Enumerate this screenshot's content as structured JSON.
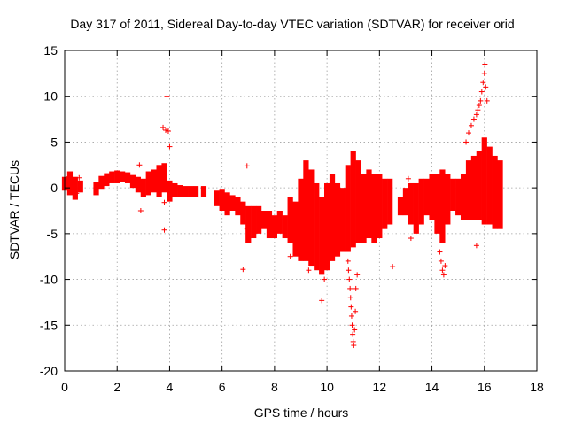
{
  "chart_data": {
    "type": "scatter",
    "title": "Day 317 of 2011, Sidereal Day-to-day VTEC variation (SDTVAR) for receiver orid",
    "xlabel": "GPS time / hours",
    "ylabel": "SDTVAR / TECUs",
    "xlim": [
      0,
      18
    ],
    "ylim": [
      -20,
      15
    ],
    "xticks": [
      0,
      2,
      4,
      6,
      8,
      10,
      12,
      14,
      16,
      18
    ],
    "yticks": [
      -20,
      -15,
      -10,
      -5,
      0,
      5,
      10,
      15
    ],
    "grid": true,
    "marker": "+",
    "series_color": "#ff0000",
    "bands": [
      {
        "x": 0.0,
        "lo": -0.3,
        "hi": 1.2
      },
      {
        "x": 0.2,
        "lo": -0.8,
        "hi": 1.8
      },
      {
        "x": 0.4,
        "lo": -1.3,
        "hi": 1.2
      },
      {
        "x": 0.6,
        "lo": -0.5,
        "hi": 0.8
      },
      {
        "x": 1.2,
        "lo": -0.8,
        "hi": 0.6
      },
      {
        "x": 1.4,
        "lo": -0.2,
        "hi": 1.3
      },
      {
        "x": 1.6,
        "lo": 0.2,
        "hi": 1.6
      },
      {
        "x": 1.8,
        "lo": 0.5,
        "hi": 1.8
      },
      {
        "x": 2.0,
        "lo": 0.5,
        "hi": 1.9
      },
      {
        "x": 2.2,
        "lo": 0.6,
        "hi": 1.8
      },
      {
        "x": 2.4,
        "lo": 0.5,
        "hi": 1.7
      },
      {
        "x": 2.6,
        "lo": 0.0,
        "hi": 1.4
      },
      {
        "x": 2.8,
        "lo": -0.5,
        "hi": 1.2
      },
      {
        "x": 3.0,
        "lo": -1.0,
        "hi": 1.0
      },
      {
        "x": 3.2,
        "lo": -0.8,
        "hi": 1.8
      },
      {
        "x": 3.4,
        "lo": -0.5,
        "hi": 2.0
      },
      {
        "x": 3.6,
        "lo": -1.0,
        "hi": 2.5
      },
      {
        "x": 3.8,
        "lo": -0.5,
        "hi": 2.7
      },
      {
        "x": 4.0,
        "lo": -1.5,
        "hi": 0.8
      },
      {
        "x": 4.2,
        "lo": -1.0,
        "hi": 0.5
      },
      {
        "x": 4.4,
        "lo": -1.0,
        "hi": 0.3
      },
      {
        "x": 4.6,
        "lo": -1.0,
        "hi": 0.2
      },
      {
        "x": 4.8,
        "lo": -1.0,
        "hi": 0.2
      },
      {
        "x": 5.0,
        "lo": -1.0,
        "hi": 0.2
      },
      {
        "x": 5.3,
        "lo": -1.0,
        "hi": 0.2
      },
      {
        "x": 5.8,
        "lo": -2.0,
        "hi": -0.3
      },
      {
        "x": 6.0,
        "lo": -2.5,
        "hi": -0.2
      },
      {
        "x": 6.2,
        "lo": -3.0,
        "hi": -0.5
      },
      {
        "x": 6.4,
        "lo": -2.5,
        "hi": -0.8
      },
      {
        "x": 6.6,
        "lo": -3.0,
        "hi": -1.0
      },
      {
        "x": 6.8,
        "lo": -4.0,
        "hi": -1.5
      },
      {
        "x": 7.0,
        "lo": -6.0,
        "hi": -2.0
      },
      {
        "x": 7.2,
        "lo": -5.5,
        "hi": -2.0
      },
      {
        "x": 7.4,
        "lo": -5.0,
        "hi": -2.0
      },
      {
        "x": 7.6,
        "lo": -4.5,
        "hi": -2.5
      },
      {
        "x": 7.8,
        "lo": -5.5,
        "hi": -2.5
      },
      {
        "x": 8.0,
        "lo": -5.5,
        "hi": -3.0
      },
      {
        "x": 8.2,
        "lo": -5.0,
        "hi": -2.5
      },
      {
        "x": 8.4,
        "lo": -5.5,
        "hi": -3.0
      },
      {
        "x": 8.6,
        "lo": -6.0,
        "hi": -1.0
      },
      {
        "x": 8.8,
        "lo": -7.5,
        "hi": -1.5
      },
      {
        "x": 9.0,
        "lo": -8.0,
        "hi": 1.0
      },
      {
        "x": 9.2,
        "lo": -8.0,
        "hi": 3.0
      },
      {
        "x": 9.4,
        "lo": -8.5,
        "hi": 2.0
      },
      {
        "x": 9.6,
        "lo": -9.0,
        "hi": 0.5
      },
      {
        "x": 9.8,
        "lo": -9.5,
        "hi": -1.0
      },
      {
        "x": 10.0,
        "lo": -9.0,
        "hi": 0.5
      },
      {
        "x": 10.2,
        "lo": -8.0,
        "hi": 1.5
      },
      {
        "x": 10.4,
        "lo": -7.5,
        "hi": 0.5
      },
      {
        "x": 10.6,
        "lo": -7.0,
        "hi": 0.0
      },
      {
        "x": 10.8,
        "lo": -7.0,
        "hi": 2.5
      },
      {
        "x": 11.0,
        "lo": -6.5,
        "hi": 4.0
      },
      {
        "x": 11.2,
        "lo": -6.0,
        "hi": 3.0
      },
      {
        "x": 11.4,
        "lo": -6.0,
        "hi": 1.5
      },
      {
        "x": 11.6,
        "lo": -5.5,
        "hi": 2.0
      },
      {
        "x": 11.8,
        "lo": -6.0,
        "hi": 1.5
      },
      {
        "x": 12.0,
        "lo": -5.5,
        "hi": 1.5
      },
      {
        "x": 12.2,
        "lo": -4.5,
        "hi": 1.0
      },
      {
        "x": 12.4,
        "lo": -4.0,
        "hi": 1.0
      },
      {
        "x": 12.8,
        "lo": -3.0,
        "hi": -1.0
      },
      {
        "x": 13.0,
        "lo": -3.0,
        "hi": 0.0
      },
      {
        "x": 13.2,
        "lo": -4.0,
        "hi": 0.5
      },
      {
        "x": 13.4,
        "lo": -5.0,
        "hi": 0.5
      },
      {
        "x": 13.6,
        "lo": -4.0,
        "hi": 1.0
      },
      {
        "x": 13.8,
        "lo": -3.0,
        "hi": 1.0
      },
      {
        "x": 14.0,
        "lo": -3.5,
        "hi": 1.5
      },
      {
        "x": 14.2,
        "lo": -5.0,
        "hi": 1.5
      },
      {
        "x": 14.4,
        "lo": -6.0,
        "hi": 2.0
      },
      {
        "x": 14.6,
        "lo": -4.0,
        "hi": 1.5
      },
      {
        "x": 14.8,
        "lo": -2.5,
        "hi": 1.0
      },
      {
        "x": 15.0,
        "lo": -3.0,
        "hi": 1.0
      },
      {
        "x": 15.2,
        "lo": -3.5,
        "hi": 1.5
      },
      {
        "x": 15.4,
        "lo": -3.5,
        "hi": 3.0
      },
      {
        "x": 15.6,
        "lo": -3.5,
        "hi": 3.5
      },
      {
        "x": 15.8,
        "lo": -3.5,
        "hi": 4.0
      },
      {
        "x": 16.0,
        "lo": -4.0,
        "hi": 5.5
      },
      {
        "x": 16.2,
        "lo": -4.0,
        "hi": 4.5
      },
      {
        "x": 16.4,
        "lo": -4.5,
        "hi": 3.5
      },
      {
        "x": 16.6,
        "lo": -4.5,
        "hi": 3.0
      }
    ],
    "points": [
      [
        0.05,
        0.5
      ],
      [
        0.15,
        1.2
      ],
      [
        0.3,
        0.2
      ],
      [
        0.45,
        -0.6
      ],
      [
        0.55,
        1.1
      ],
      [
        2.85,
        2.5
      ],
      [
        2.9,
        -2.5
      ],
      [
        3.75,
        6.6
      ],
      [
        3.85,
        6.3
      ],
      [
        3.9,
        10.0
      ],
      [
        3.95,
        6.2
      ],
      [
        4.0,
        4.5
      ],
      [
        3.8,
        -1.6
      ],
      [
        3.8,
        -4.6
      ],
      [
        6.8,
        -8.9
      ],
      [
        6.95,
        2.4
      ],
      [
        6.95,
        -4.5
      ],
      [
        8.6,
        -7.5
      ],
      [
        9.3,
        -9.0
      ],
      [
        9.8,
        -12.3
      ],
      [
        9.9,
        -10.0
      ],
      [
        10.8,
        -8.0
      ],
      [
        10.82,
        -9.0
      ],
      [
        10.85,
        -10.0
      ],
      [
        10.88,
        -11.0
      ],
      [
        10.9,
        -12.0
      ],
      [
        10.92,
        -13.0
      ],
      [
        10.94,
        -14.0
      ],
      [
        10.96,
        -15.0
      ],
      [
        10.98,
        -16.0
      ],
      [
        11.0,
        -16.8
      ],
      [
        11.02,
        -17.2
      ],
      [
        11.05,
        -15.5
      ],
      [
        11.08,
        -13.5
      ],
      [
        11.1,
        -11.0
      ],
      [
        11.15,
        -9.5
      ],
      [
        12.5,
        -8.6
      ],
      [
        13.1,
        1.0
      ],
      [
        13.2,
        -5.5
      ],
      [
        14.3,
        -7.0
      ],
      [
        14.35,
        -8.0
      ],
      [
        14.4,
        -9.0
      ],
      [
        14.45,
        -9.5
      ],
      [
        14.5,
        -8.5
      ],
      [
        15.7,
        -6.3
      ],
      [
        15.3,
        5.0
      ],
      [
        15.4,
        6.0
      ],
      [
        15.5,
        6.8
      ],
      [
        15.6,
        7.5
      ],
      [
        15.7,
        8.0
      ],
      [
        15.75,
        8.5
      ],
      [
        15.8,
        9.0
      ],
      [
        15.85,
        9.5
      ],
      [
        15.9,
        10.5
      ],
      [
        15.95,
        11.5
      ],
      [
        16.0,
        12.5
      ],
      [
        16.02,
        13.5
      ],
      [
        16.05,
        11.0
      ],
      [
        16.1,
        9.5
      ]
    ]
  }
}
